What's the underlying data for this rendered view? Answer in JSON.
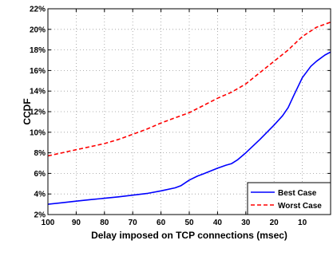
{
  "chart_data": {
    "type": "line",
    "xlabel": "Delay imposed on TCP connections (msec)",
    "ylabel": "CCDF",
    "xlim": [
      100,
      0
    ],
    "ylim": [
      2,
      22
    ],
    "x_reversed": true,
    "xticks": [
      100,
      90,
      80,
      70,
      60,
      50,
      40,
      30,
      20,
      10
    ],
    "yticks": [
      2,
      4,
      6,
      8,
      10,
      12,
      14,
      16,
      18,
      20,
      22
    ],
    "xtick_labels": [
      "100",
      "90",
      "80",
      "70",
      "60",
      "50",
      "40",
      "30",
      "20",
      "10"
    ],
    "ytick_labels": [
      "2%",
      "4%",
      "6%",
      "8%",
      "10%",
      "12%",
      "14%",
      "16%",
      "18%",
      "20%",
      "22%"
    ],
    "grid": true,
    "legend_position": "bottom-right",
    "series": [
      {
        "name": "Best  Case",
        "color": "#0000ff",
        "dash": "solid",
        "x": [
          100,
          95,
          90,
          85,
          80,
          75,
          70,
          65,
          60,
          55,
          53,
          50,
          47,
          45,
          40,
          37,
          35,
          33,
          30,
          25,
          20,
          17,
          15,
          13,
          10,
          7,
          5,
          2,
          0
        ],
        "y": [
          3.0,
          3.15,
          3.3,
          3.45,
          3.58,
          3.72,
          3.88,
          4.05,
          4.3,
          4.6,
          4.8,
          5.35,
          5.75,
          5.95,
          6.5,
          6.8,
          6.95,
          7.3,
          8.0,
          9.3,
          10.7,
          11.6,
          12.4,
          13.6,
          15.3,
          16.4,
          16.9,
          17.5,
          17.8
        ]
      },
      {
        "name": "Worst Case",
        "color": "#ff0000",
        "dash": "dashed",
        "x": [
          100,
          95,
          90,
          85,
          80,
          75,
          70,
          65,
          60,
          55,
          50,
          45,
          40,
          35,
          30,
          25,
          20,
          15,
          10,
          5,
          3,
          0
        ],
        "y": [
          7.7,
          8.0,
          8.3,
          8.6,
          8.9,
          9.3,
          9.8,
          10.3,
          10.9,
          11.4,
          11.9,
          12.6,
          13.3,
          13.9,
          14.7,
          15.8,
          16.9,
          18.0,
          19.3,
          20.2,
          20.4,
          20.7
        ]
      }
    ]
  }
}
